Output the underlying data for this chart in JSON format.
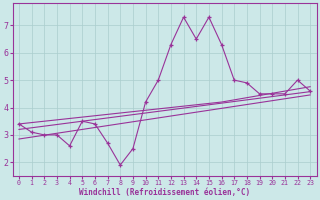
{
  "x": [
    0,
    1,
    2,
    3,
    4,
    5,
    6,
    7,
    8,
    9,
    10,
    11,
    12,
    13,
    14,
    15,
    16,
    17,
    18,
    19,
    20,
    21,
    22,
    23
  ],
  "y_main": [
    3.4,
    3.1,
    3.0,
    3.0,
    2.6,
    3.5,
    3.4,
    2.7,
    1.9,
    2.5,
    4.2,
    5.0,
    6.3,
    7.3,
    6.5,
    7.3,
    6.3,
    5.0,
    4.9,
    4.5,
    4.5,
    4.5,
    5.0,
    4.6
  ],
  "y_upper": [
    3.4,
    3.45,
    3.5,
    3.55,
    3.6,
    3.65,
    3.7,
    3.75,
    3.8,
    3.85,
    3.9,
    3.95,
    4.0,
    4.05,
    4.1,
    4.15,
    4.2,
    4.28,
    4.36,
    4.44,
    4.52,
    4.6,
    4.68,
    4.76
  ],
  "y_mid": [
    3.2,
    3.26,
    3.32,
    3.38,
    3.44,
    3.5,
    3.56,
    3.62,
    3.68,
    3.74,
    3.8,
    3.86,
    3.92,
    3.98,
    4.04,
    4.1,
    4.16,
    4.22,
    4.28,
    4.34,
    4.4,
    4.46,
    4.52,
    4.58
  ],
  "y_lower": [
    2.85,
    2.92,
    2.99,
    3.06,
    3.13,
    3.2,
    3.27,
    3.34,
    3.41,
    3.48,
    3.55,
    3.62,
    3.69,
    3.76,
    3.83,
    3.9,
    3.97,
    4.04,
    4.11,
    4.18,
    4.25,
    4.32,
    4.39,
    4.46
  ],
  "line_color": "#993399",
  "bg_color": "#cce8e8",
  "grid_color": "#aacece",
  "xlabel": "Windchill (Refroidissement éolien,°C)",
  "ylim": [
    1.5,
    7.8
  ],
  "xlim": [
    -0.5,
    23.5
  ],
  "yticks": [
    2,
    3,
    4,
    5,
    6,
    7
  ],
  "xticks": [
    0,
    1,
    2,
    3,
    4,
    5,
    6,
    7,
    8,
    9,
    10,
    11,
    12,
    13,
    14,
    15,
    16,
    17,
    18,
    19,
    20,
    21,
    22,
    23
  ]
}
